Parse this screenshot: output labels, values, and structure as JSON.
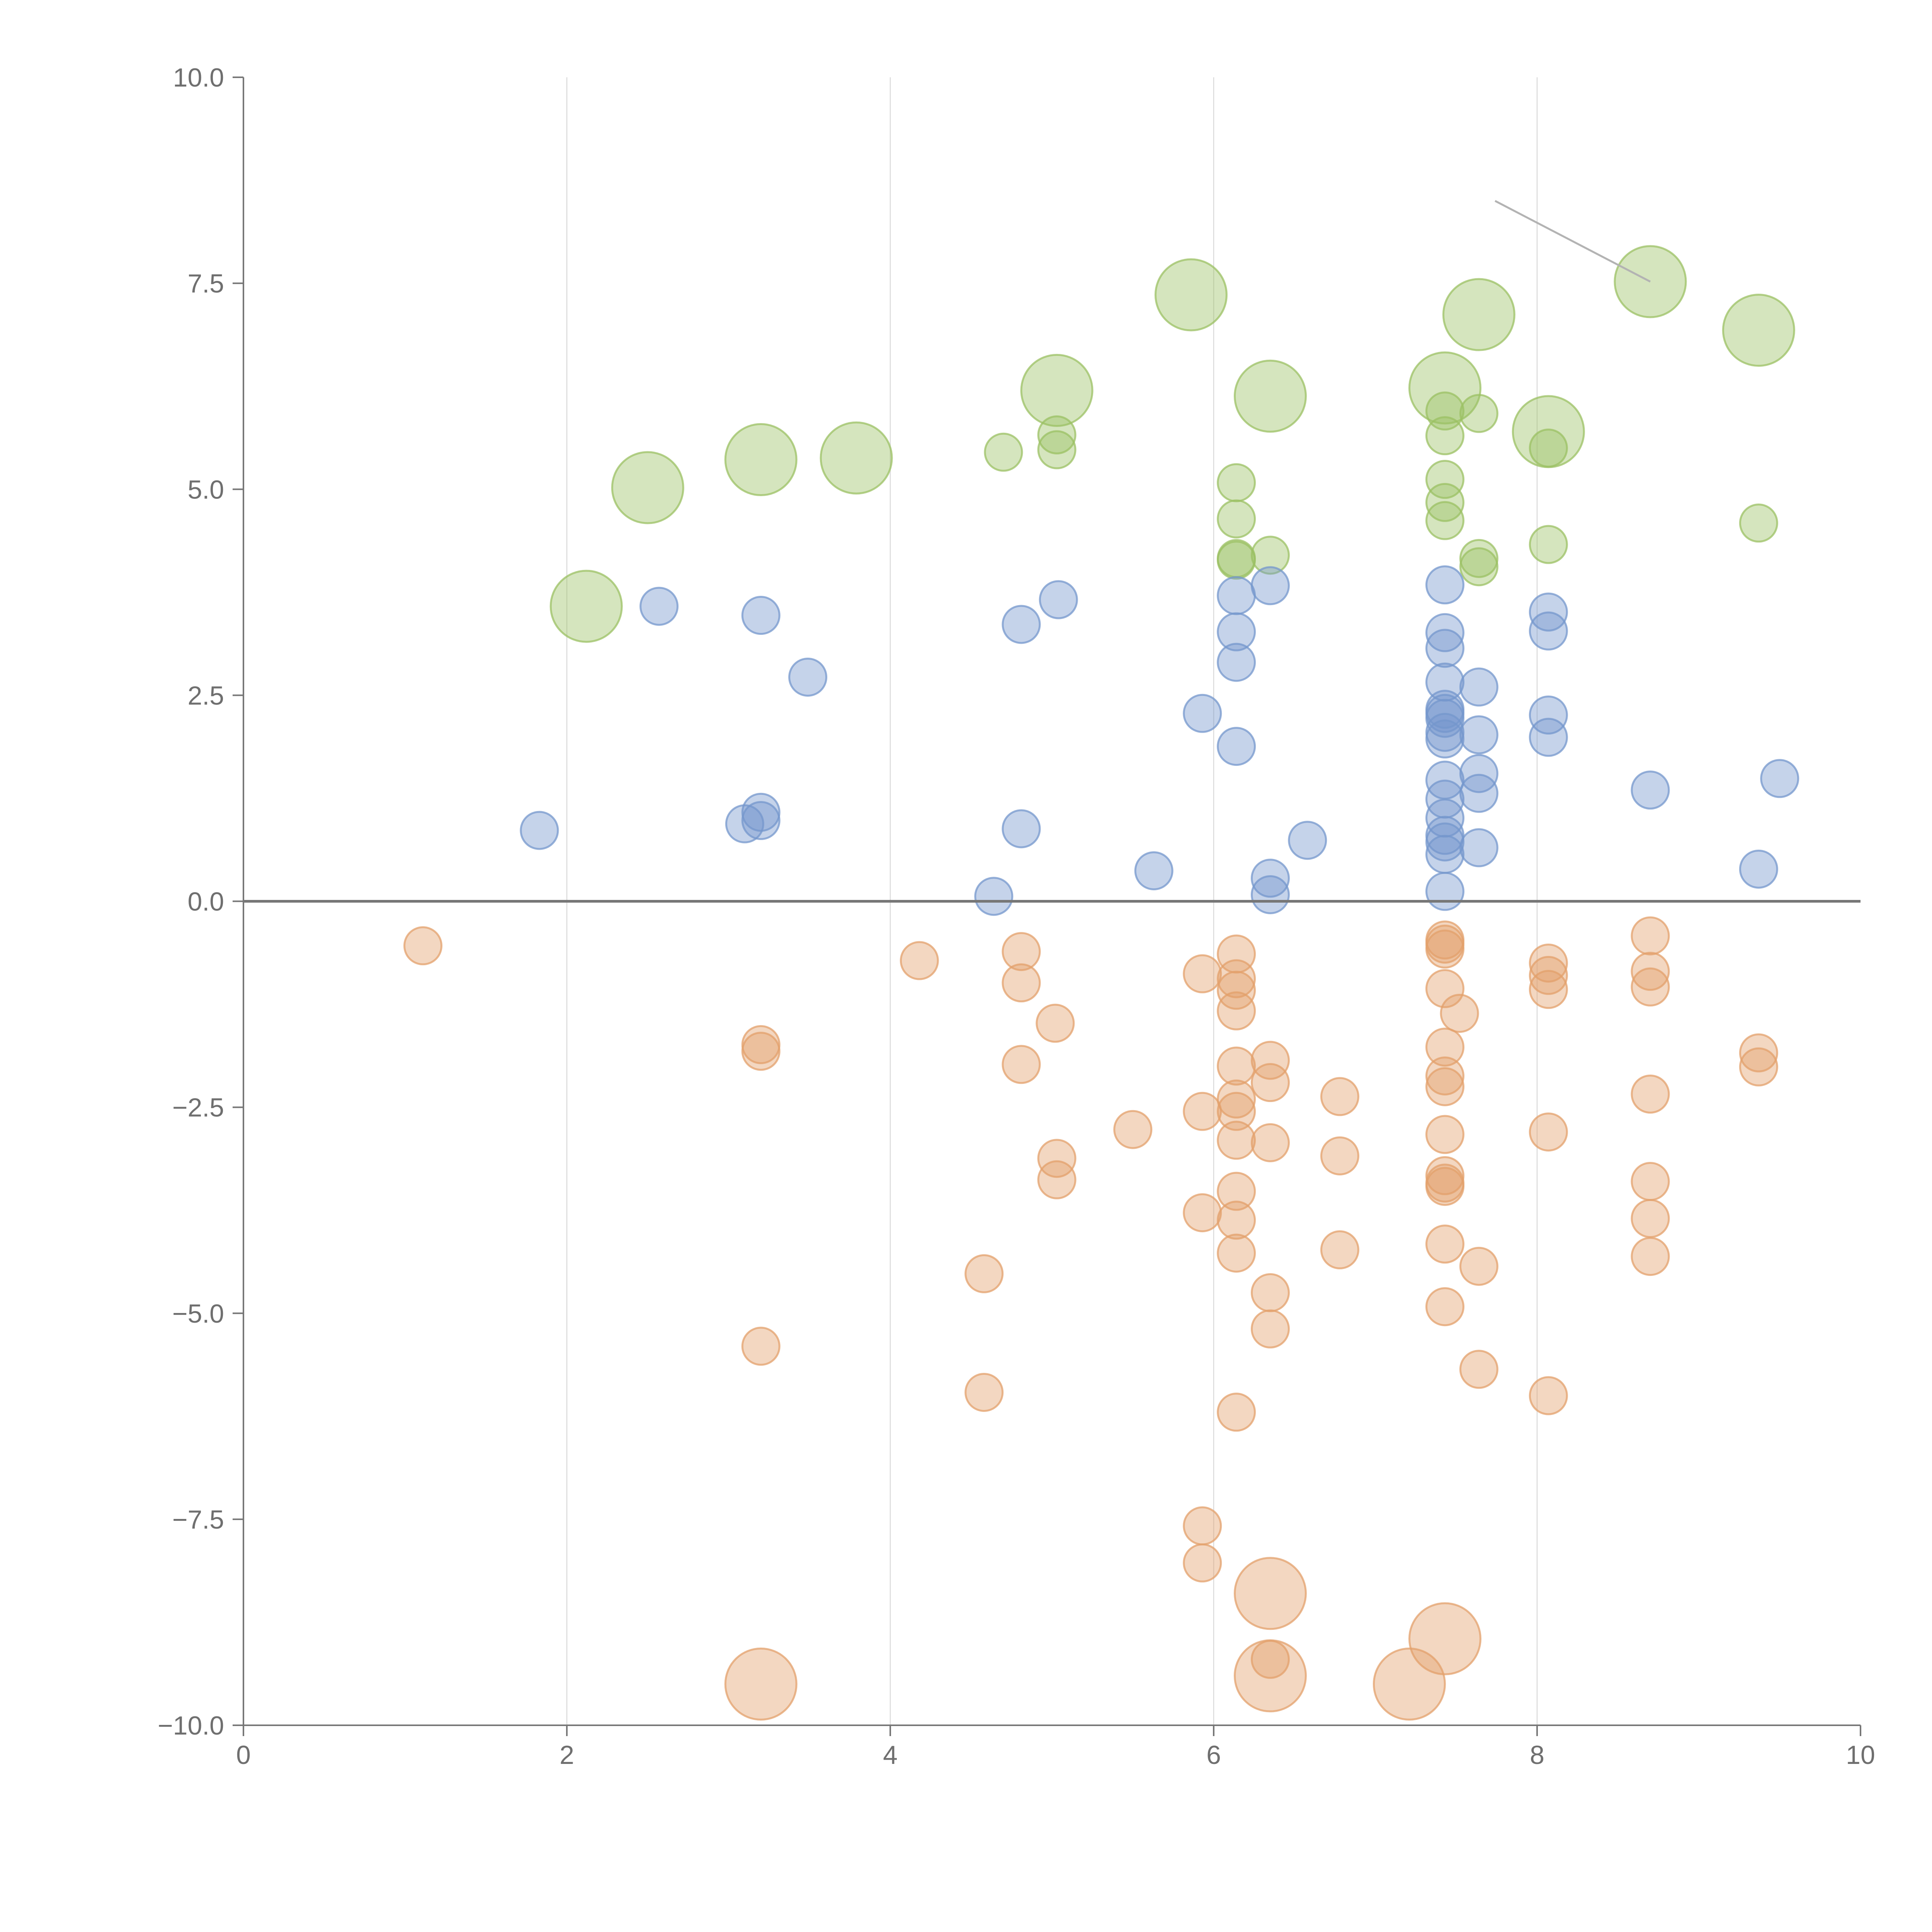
{
  "chart_data": {
    "type": "scatter",
    "title": "",
    "xlabel": "",
    "ylabel": "",
    "xlim": [
      0,
      10
    ],
    "ylim": [
      -10,
      10
    ],
    "x_ticks": [
      0,
      2,
      4,
      6,
      8,
      10
    ],
    "y_ticks": [
      10.0,
      7.5,
      5.0,
      2.5,
      0.0,
      -2.5,
      -5.0,
      -7.5,
      -10.0
    ],
    "x_tick_labels": [
      "0",
      "2",
      "4",
      "6",
      "8",
      "10"
    ],
    "y_tick_labels": [
      "10.0",
      "7.5",
      "5.0",
      "2.5",
      "0.0",
      "−2.5",
      "−5.0",
      "−7.5",
      "−10.0"
    ],
    "grid": "vertical",
    "reference_line_y": 0,
    "series": [
      {
        "name": "green",
        "color": "#9bc063",
        "points": [
          [
            2.12,
            3.58,
            "large"
          ],
          [
            2.5,
            5.02,
            "large"
          ],
          [
            3.2,
            5.36,
            "large"
          ],
          [
            3.79,
            5.38,
            "large"
          ],
          [
            4.7,
            5.45,
            "small"
          ],
          [
            5.03,
            5.48,
            "small"
          ],
          [
            5.03,
            5.66,
            "small"
          ],
          [
            5.03,
            6.2,
            "large"
          ],
          [
            5.86,
            7.36,
            "large"
          ],
          [
            6.14,
            5.08,
            "small"
          ],
          [
            6.14,
            4.64,
            "small"
          ],
          [
            6.14,
            4.16,
            "small"
          ],
          [
            6.14,
            4.14,
            "small"
          ],
          [
            6.35,
            4.2,
            "small"
          ],
          [
            6.35,
            6.13,
            "large"
          ],
          [
            7.43,
            6.23,
            "large"
          ],
          [
            7.43,
            5.95,
            "small"
          ],
          [
            7.43,
            5.65,
            "small"
          ],
          [
            7.43,
            5.12,
            "small"
          ],
          [
            7.43,
            4.84,
            "small"
          ],
          [
            7.43,
            4.62,
            "small"
          ],
          [
            7.64,
            5.92,
            "small"
          ],
          [
            7.64,
            7.12,
            "large"
          ],
          [
            7.64,
            4.16,
            "small"
          ],
          [
            7.64,
            4.06,
            "small"
          ],
          [
            8.07,
            5.7,
            "large"
          ],
          [
            8.07,
            5.5,
            "small"
          ],
          [
            8.07,
            4.33,
            "small"
          ],
          [
            8.7,
            7.52,
            "large"
          ],
          [
            9.37,
            6.93,
            "large"
          ],
          [
            9.37,
            4.59,
            "small"
          ]
        ]
      },
      {
        "name": "blue",
        "color": "#7497cc",
        "points": [
          [
            1.83,
            0.86,
            "small"
          ],
          [
            2.57,
            3.58,
            "small"
          ],
          [
            3.1,
            0.94,
            "small"
          ],
          [
            3.2,
            1.08,
            "small"
          ],
          [
            3.2,
            0.98,
            "small"
          ],
          [
            3.2,
            3.47,
            "small"
          ],
          [
            3.49,
            2.72,
            "small"
          ],
          [
            4.64,
            0.06,
            "small"
          ],
          [
            4.81,
            3.36,
            "small"
          ],
          [
            4.81,
            0.88,
            "small"
          ],
          [
            5.04,
            3.66,
            "small"
          ],
          [
            5.63,
            0.37,
            "small"
          ],
          [
            5.93,
            2.28,
            "small"
          ],
          [
            6.14,
            3.71,
            "small"
          ],
          [
            6.14,
            3.27,
            "small"
          ],
          [
            6.14,
            2.9,
            "small"
          ],
          [
            6.14,
            1.88,
            "small"
          ],
          [
            6.35,
            3.83,
            "small"
          ],
          [
            6.35,
            0.28,
            "small"
          ],
          [
            6.35,
            0.08,
            "small"
          ],
          [
            6.58,
            0.74,
            "small"
          ],
          [
            7.43,
            3.84,
            "small"
          ],
          [
            7.43,
            3.26,
            "small"
          ],
          [
            7.43,
            3.07,
            "small"
          ],
          [
            7.43,
            2.66,
            "small"
          ],
          [
            7.43,
            2.33,
            "small"
          ],
          [
            7.43,
            2.28,
            "small"
          ],
          [
            7.43,
            2.22,
            "small"
          ],
          [
            7.43,
            2.05,
            "small"
          ],
          [
            7.43,
            1.97,
            "small"
          ],
          [
            7.43,
            1.47,
            "small"
          ],
          [
            7.43,
            1.24,
            "small"
          ],
          [
            7.43,
            1.01,
            "small"
          ],
          [
            7.43,
            0.8,
            "small"
          ],
          [
            7.43,
            0.72,
            "small"
          ],
          [
            7.43,
            0.57,
            "small"
          ],
          [
            7.43,
            0.12,
            "small"
          ],
          [
            7.64,
            2.6,
            "small"
          ],
          [
            7.64,
            2.02,
            "small"
          ],
          [
            7.64,
            1.55,
            "small"
          ],
          [
            7.64,
            1.31,
            "small"
          ],
          [
            7.64,
            0.65,
            "small"
          ],
          [
            8.07,
            3.51,
            "small"
          ],
          [
            8.07,
            3.28,
            "small"
          ],
          [
            8.07,
            2.26,
            "small"
          ],
          [
            8.07,
            1.99,
            "small"
          ],
          [
            8.7,
            1.35,
            "small"
          ],
          [
            9.37,
            0.39,
            "small"
          ],
          [
            9.5,
            1.49,
            "small"
          ]
        ]
      },
      {
        "name": "orange",
        "color": "#e3a06b",
        "points": [
          [
            1.11,
            -0.54,
            "small"
          ],
          [
            3.2,
            -1.74,
            "small"
          ],
          [
            3.2,
            -1.82,
            "small"
          ],
          [
            3.2,
            -5.4,
            "small"
          ],
          [
            3.2,
            -9.5,
            "large"
          ],
          [
            4.18,
            -0.72,
            "small"
          ],
          [
            4.58,
            -4.52,
            "small"
          ],
          [
            4.58,
            -5.96,
            "small"
          ],
          [
            4.81,
            -0.61,
            "small"
          ],
          [
            4.81,
            -0.99,
            "small"
          ],
          [
            4.81,
            -1.98,
            "small"
          ],
          [
            5.02,
            -1.48,
            "small"
          ],
          [
            5.03,
            -3.12,
            "small"
          ],
          [
            5.03,
            -3.38,
            "small"
          ],
          [
            5.5,
            -2.77,
            "small"
          ],
          [
            5.93,
            -0.88,
            "small"
          ],
          [
            5.93,
            -2.55,
            "small"
          ],
          [
            5.93,
            -3.78,
            "small"
          ],
          [
            5.93,
            -7.58,
            "small"
          ],
          [
            5.93,
            -8.03,
            "small"
          ],
          [
            6.14,
            -0.64,
            "small"
          ],
          [
            6.14,
            -0.94,
            "small"
          ],
          [
            6.14,
            -1.08,
            "small"
          ],
          [
            6.14,
            -1.33,
            "small"
          ],
          [
            6.14,
            -2.0,
            "small"
          ],
          [
            6.14,
            -2.4,
            "small"
          ],
          [
            6.14,
            -2.55,
            "small"
          ],
          [
            6.14,
            -2.9,
            "small"
          ],
          [
            6.14,
            -3.52,
            "small"
          ],
          [
            6.14,
            -3.87,
            "small"
          ],
          [
            6.14,
            -4.27,
            "small"
          ],
          [
            6.14,
            -6.2,
            "small"
          ],
          [
            6.35,
            -1.93,
            "small"
          ],
          [
            6.35,
            -2.2,
            "small"
          ],
          [
            6.35,
            -2.93,
            "small"
          ],
          [
            6.35,
            -4.75,
            "small"
          ],
          [
            6.35,
            -5.19,
            "small"
          ],
          [
            6.35,
            -9.2,
            "small"
          ],
          [
            6.35,
            -8.4,
            "large"
          ],
          [
            6.35,
            -9.4,
            "large"
          ],
          [
            6.78,
            -2.37,
            "small"
          ],
          [
            6.78,
            -3.09,
            "small"
          ],
          [
            6.78,
            -4.23,
            "small"
          ],
          [
            7.21,
            -9.5,
            "large"
          ],
          [
            7.43,
            -0.47,
            "small"
          ],
          [
            7.43,
            -0.52,
            "small"
          ],
          [
            7.43,
            -0.58,
            "small"
          ],
          [
            7.43,
            -1.06,
            "small"
          ],
          [
            7.43,
            -1.77,
            "small"
          ],
          [
            7.43,
            -2.12,
            "small"
          ],
          [
            7.43,
            -2.25,
            "small"
          ],
          [
            7.43,
            -2.83,
            "small"
          ],
          [
            7.43,
            -3.33,
            "small"
          ],
          [
            7.43,
            -3.42,
            "small"
          ],
          [
            7.43,
            -3.46,
            "small"
          ],
          [
            7.43,
            -4.16,
            "small"
          ],
          [
            7.43,
            -4.92,
            "small"
          ],
          [
            7.43,
            -8.95,
            "large"
          ],
          [
            7.52,
            -1.36,
            "small"
          ],
          [
            7.64,
            -4.43,
            "small"
          ],
          [
            7.64,
            -5.68,
            "small"
          ],
          [
            8.07,
            -0.75,
            "small"
          ],
          [
            8.07,
            -0.9,
            "small"
          ],
          [
            8.07,
            -1.07,
            "small"
          ],
          [
            8.07,
            -2.8,
            "small"
          ],
          [
            8.07,
            -6.0,
            "small"
          ],
          [
            8.7,
            -0.42,
            "small"
          ],
          [
            8.7,
            -0.85,
            "small"
          ],
          [
            8.7,
            -1.04,
            "small"
          ],
          [
            8.7,
            -2.34,
            "small"
          ],
          [
            8.7,
            -3.4,
            "small"
          ],
          [
            8.7,
            -3.85,
            "small"
          ],
          [
            8.7,
            -4.31,
            "small"
          ],
          [
            9.37,
            -1.84,
            "small"
          ],
          [
            9.37,
            -2.01,
            "small"
          ]
        ]
      }
    ],
    "annotation_line": {
      "from": [
        7.74,
        8.5
      ],
      "to": [
        8.7,
        7.52
      ]
    }
  }
}
